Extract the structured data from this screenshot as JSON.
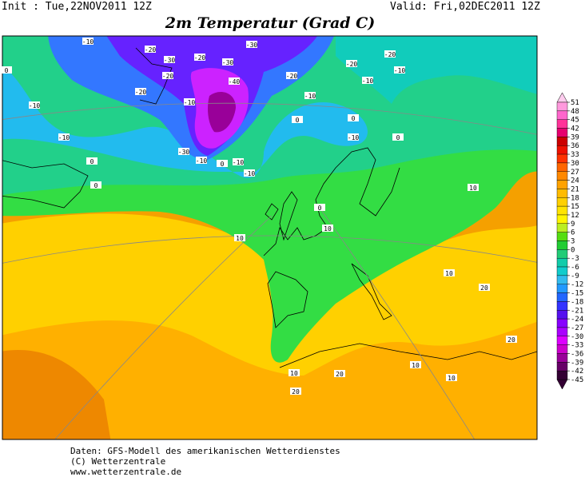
{
  "header": {
    "init": "Init : Tue,22NOV2011 12Z",
    "valid": "Valid: Fri,02DEC2011 12Z",
    "title": "2m Temperatur (Grad C)"
  },
  "map": {
    "labels": [
      "-10",
      "-20",
      "-30",
      "-20",
      "-30",
      "-30",
      "-20",
      "-20",
      "-10",
      "-10",
      "-20",
      "-40",
      "-20",
      "-20",
      "-10",
      "-10",
      "-10",
      "0",
      "0",
      "0",
      "-10",
      "-10",
      "0",
      "-30",
      "-10",
      "0",
      "-10",
      "-10",
      "0",
      "0",
      "0",
      "10",
      "10",
      "10",
      "10",
      "20",
      "20",
      "10",
      "10",
      "20",
      "10",
      "20"
    ]
  },
  "colorbar": {
    "ticks": [
      51,
      48,
      45,
      42,
      39,
      36,
      33,
      30,
      27,
      24,
      21,
      18,
      15,
      12,
      9,
      6,
      3,
      0,
      -3,
      -6,
      -9,
      -12,
      -15,
      -18,
      -21,
      -24,
      -27,
      -30,
      -33,
      -36,
      -39,
      -42,
      -45
    ],
    "colors": [
      "#ff99dd",
      "#ff66cc",
      "#ff3399",
      "#e6006e",
      "#cc0000",
      "#ee1100",
      "#ff3300",
      "#ff6600",
      "#ff8800",
      "#ffa200",
      "#ffbb00",
      "#ffd000",
      "#ffe400",
      "#fff500",
      "#bbee22",
      "#55dd11",
      "#22cc33",
      "#22cc77",
      "#11ccaa",
      "#11cccc",
      "#33bbee",
      "#2299ff",
      "#2266ff",
      "#3333ff",
      "#5511ee",
      "#8800ff",
      "#aa00ff",
      "#dd00ff",
      "#cc00cc",
      "#990099",
      "#660066",
      "#330033"
    ]
  },
  "footer": {
    "lines": [
      "Daten: GFS-Modell des amerikanischen Wetterdienstes",
      "(C) Wetterzentrale",
      "www.wetterzentrale.de"
    ]
  }
}
